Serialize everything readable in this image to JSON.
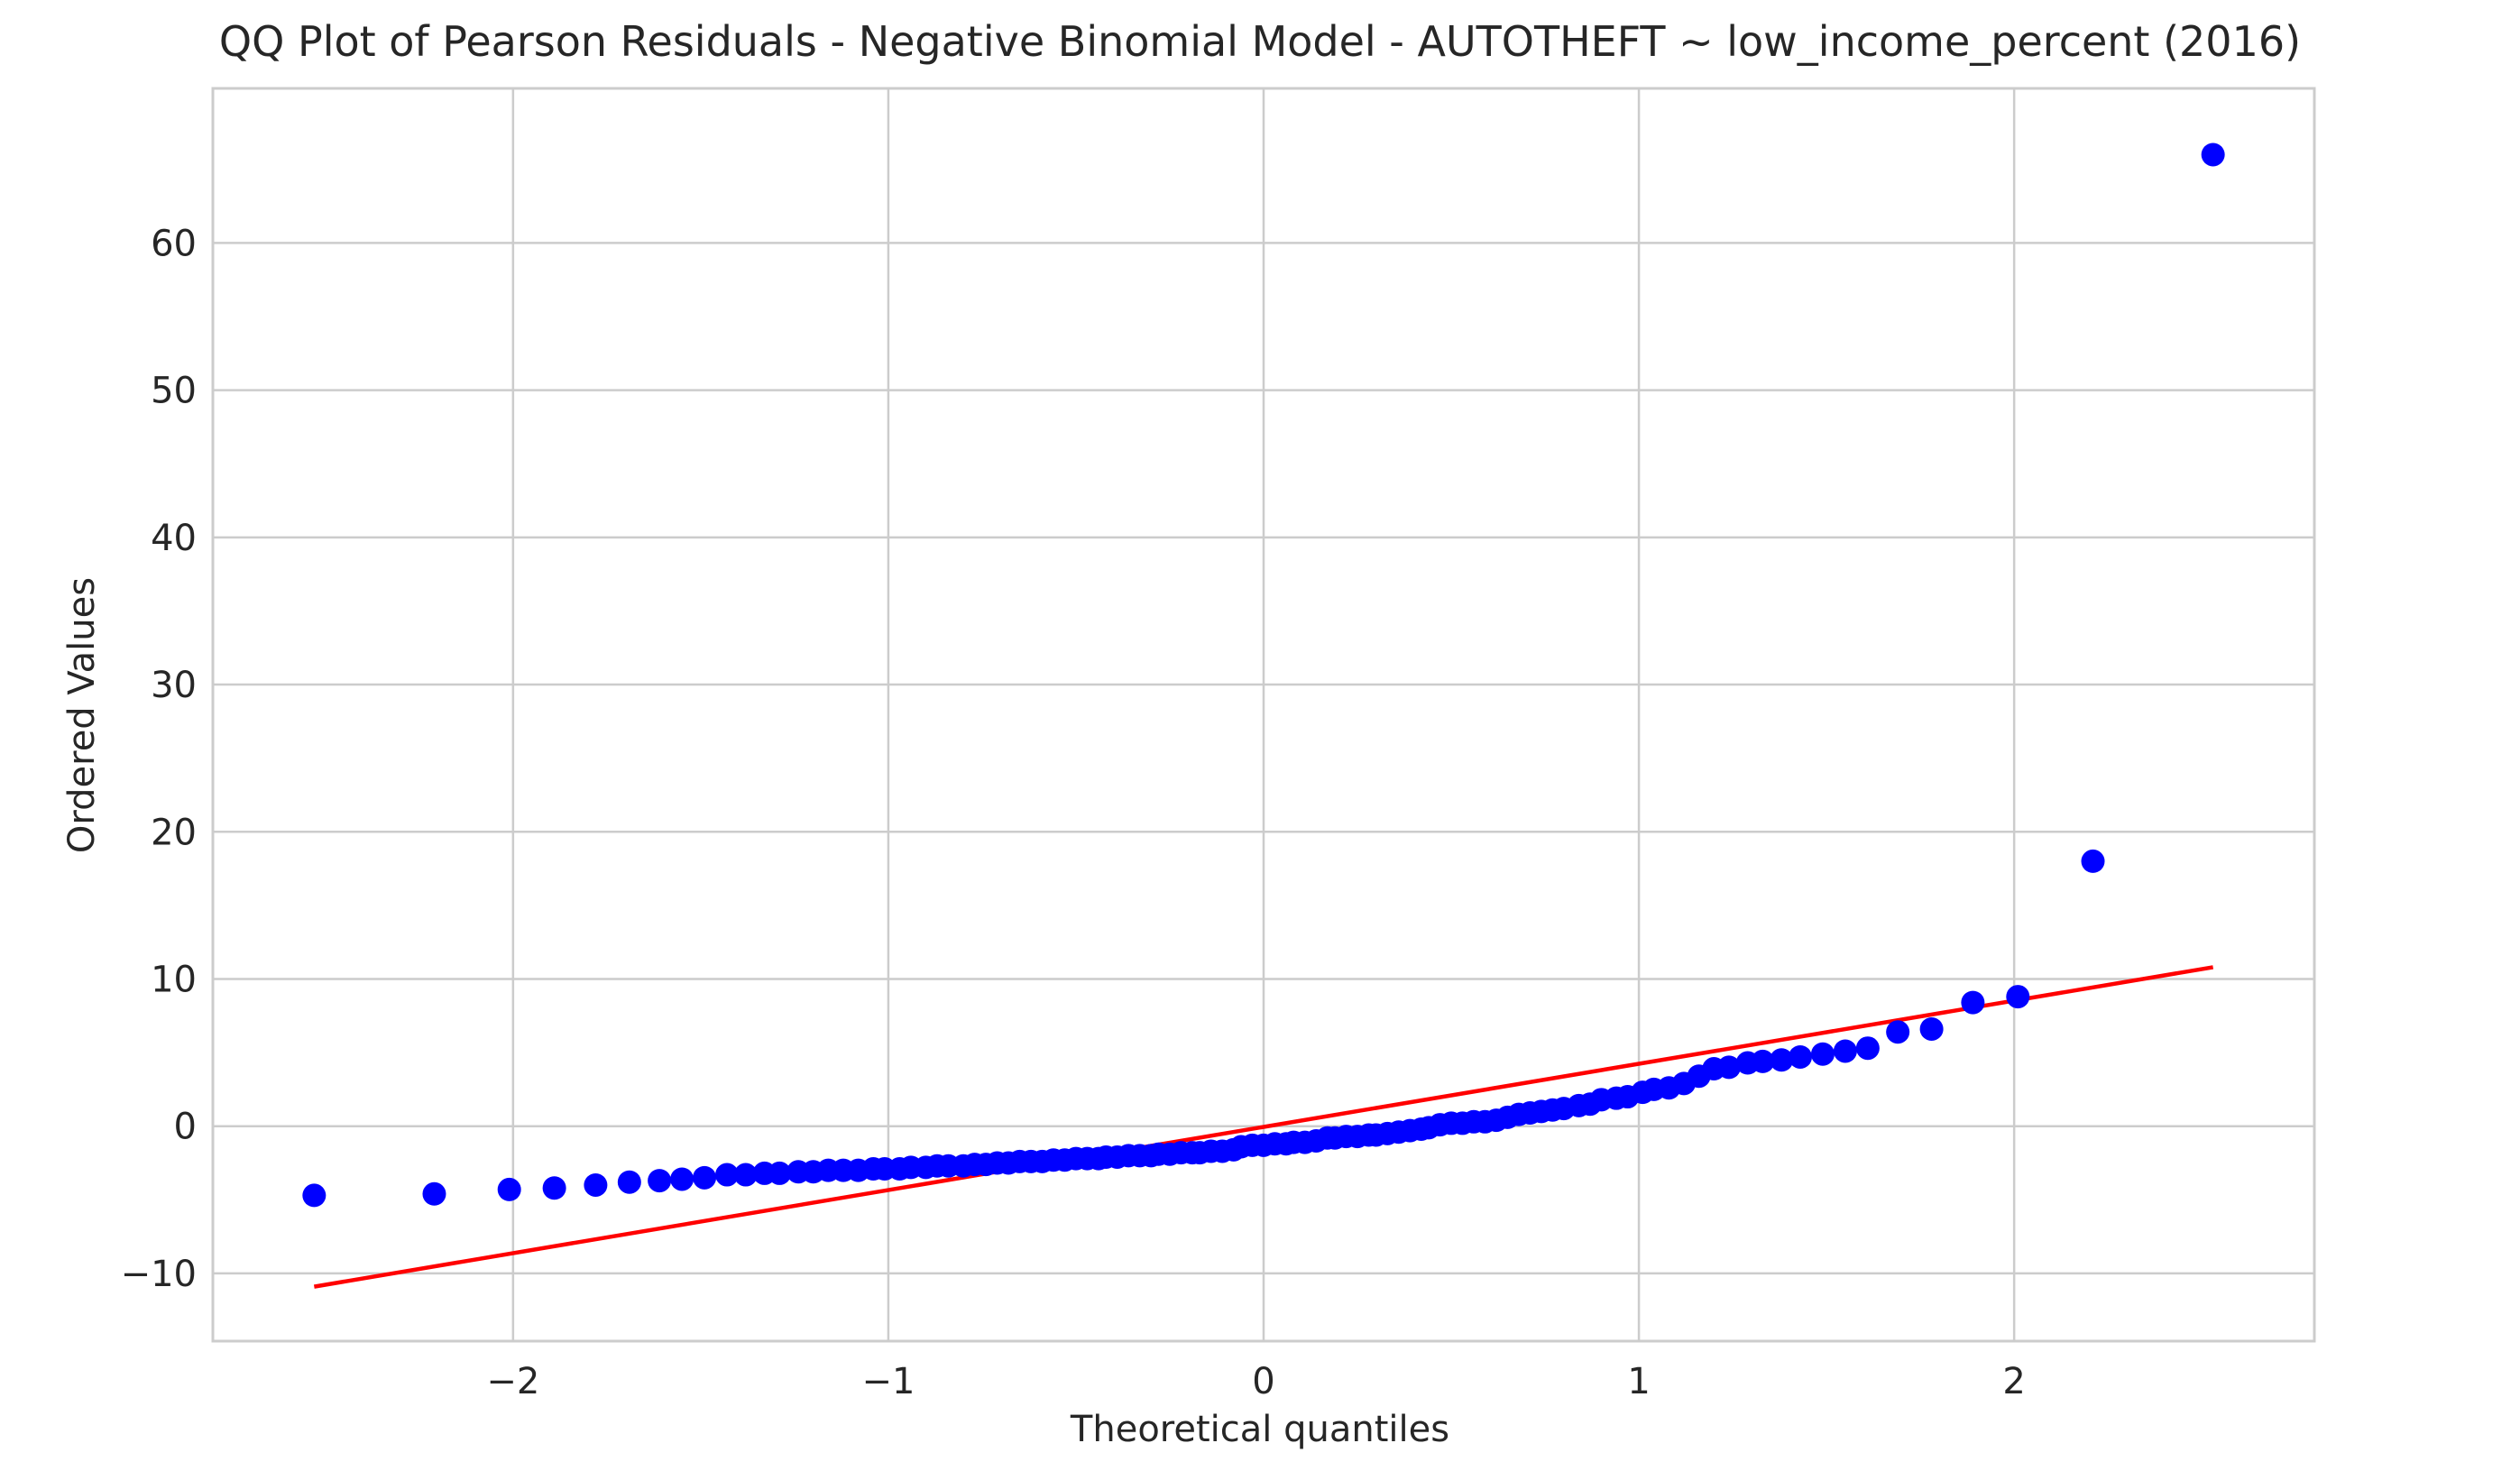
{
  "chart_data": {
    "type": "scatter",
    "title": "QQ Plot of Pearson Residuals - Negative Binomial Model - AUTOTHEFT ~ low_income_percent (2016)",
    "xlabel": "Theoretical quantiles",
    "ylabel": "Ordered Values",
    "xlim": [
      -2.8,
      2.8
    ],
    "ylim": [
      -14.6,
      70.5
    ],
    "x_ticks": [
      -2,
      -1,
      0,
      1,
      2
    ],
    "y_ticks": [
      -10,
      0,
      10,
      20,
      30,
      40,
      50,
      60
    ],
    "x_tick_labels": [
      "−2",
      "−1",
      "0",
      "1",
      "2"
    ],
    "y_tick_labels": [
      "−10",
      "0",
      "10",
      "20",
      "30",
      "40",
      "50",
      "60"
    ],
    "grid": true,
    "legend": "none",
    "colors": {
      "points": "#0000ff",
      "fit_line": "#ff0000",
      "grid": "#cccccc",
      "spine": "#cccccc",
      "text": "#262626"
    },
    "series": [
      {
        "kind": "points",
        "x": [
          -2.53,
          -2.21,
          -2.01,
          -1.89,
          -1.78,
          -1.69,
          -1.61,
          -1.55,
          -1.49,
          -1.43,
          -1.38,
          -1.33,
          -1.29,
          -1.24,
          -1.2,
          -1.16,
          -1.12,
          -1.08,
          -1.04,
          -1.01,
          -0.97,
          -0.94,
          -0.9,
          -0.87,
          -0.84,
          -0.8,
          -0.77,
          -0.74,
          -0.71,
          -0.68,
          -0.65,
          -0.62,
          -0.59,
          -0.56,
          -0.53,
          -0.5,
          -0.47,
          -0.44,
          -0.42,
          -0.39,
          -0.36,
          -0.33,
          -0.3,
          -0.28,
          -0.25,
          -0.22,
          -0.19,
          -0.17,
          -0.14,
          -0.11,
          -0.08,
          -0.06,
          -0.03,
          0.0,
          0.03,
          0.06,
          0.08,
          0.11,
          0.14,
          0.17,
          0.19,
          0.22,
          0.25,
          0.28,
          0.3,
          0.33,
          0.36,
          0.39,
          0.42,
          0.44,
          0.47,
          0.5,
          0.53,
          0.56,
          0.59,
          0.62,
          0.65,
          0.68,
          0.71,
          0.74,
          0.77,
          0.8,
          0.84,
          0.87,
          0.9,
          0.94,
          0.97,
          1.01,
          1.04,
          1.08,
          1.12,
          1.16,
          1.2,
          1.24,
          1.29,
          1.33,
          1.38,
          1.43,
          1.49,
          1.55,
          1.61,
          1.69,
          1.78,
          1.89,
          2.01,
          2.21,
          2.53
        ],
        "y": [
          -4.7,
          -4.6,
          -4.3,
          -4.2,
          -4.0,
          -3.8,
          -3.7,
          -3.6,
          -3.5,
          -3.3,
          -3.3,
          -3.2,
          -3.2,
          -3.1,
          -3.1,
          -3.0,
          -3.0,
          -3.0,
          -2.9,
          -2.9,
          -2.9,
          -2.8,
          -2.8,
          -2.7,
          -2.7,
          -2.7,
          -2.6,
          -2.6,
          -2.5,
          -2.5,
          -2.4,
          -2.4,
          -2.4,
          -2.3,
          -2.3,
          -2.2,
          -2.2,
          -2.2,
          -2.1,
          -2.1,
          -2.0,
          -2.0,
          -2.0,
          -1.9,
          -1.9,
          -1.8,
          -1.8,
          -1.8,
          -1.7,
          -1.7,
          -1.6,
          -1.4,
          -1.3,
          -1.3,
          -1.2,
          -1.2,
          -1.1,
          -1.1,
          -1.0,
          -0.8,
          -0.8,
          -0.7,
          -0.7,
          -0.6,
          -0.6,
          -0.5,
          -0.4,
          -0.3,
          -0.2,
          -0.1,
          0.1,
          0.2,
          0.2,
          0.3,
          0.3,
          0.4,
          0.6,
          0.8,
          0.9,
          1.0,
          1.1,
          1.2,
          1.4,
          1.5,
          1.8,
          1.9,
          2.0,
          2.3,
          2.5,
          2.6,
          2.9,
          3.4,
          3.9,
          4.0,
          4.3,
          4.4,
          4.5,
          4.7,
          4.9,
          5.1,
          5.3,
          6.4,
          6.6,
          8.4,
          8.8,
          18.0,
          66.0
        ]
      },
      {
        "kind": "fit_line",
        "x": [
          -2.53,
          2.53
        ],
        "y": [
          -10.9,
          10.8
        ]
      }
    ]
  }
}
